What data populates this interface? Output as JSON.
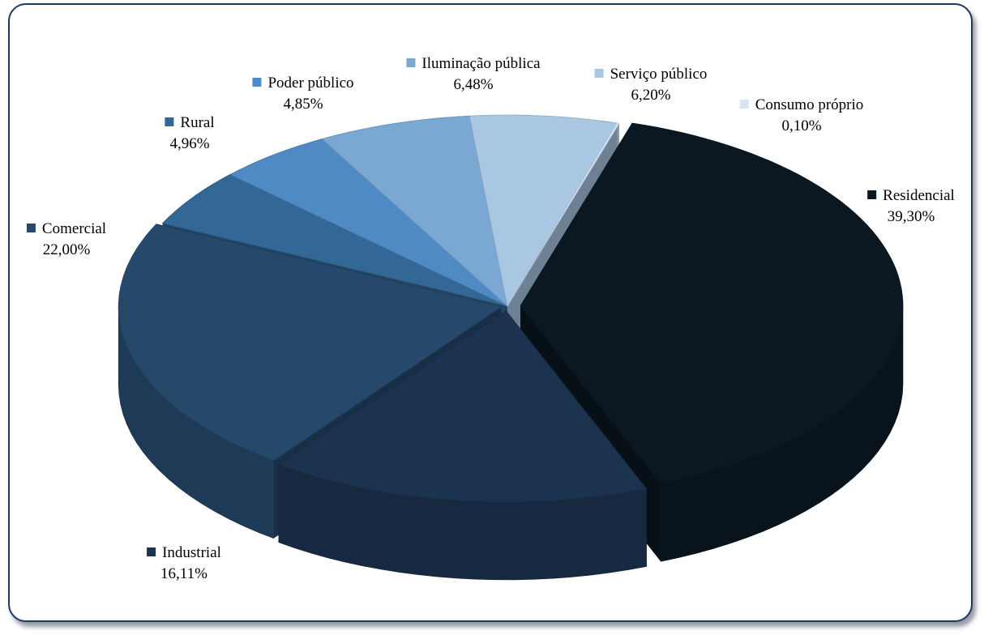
{
  "chart_data": {
    "type": "pie",
    "title": "",
    "slices": [
      {
        "name": "Residencial",
        "value": 39.3,
        "label": "39,30%",
        "color": "#0b1822"
      },
      {
        "name": "Industrial",
        "value": 16.11,
        "label": "16,11%",
        "color": "#1c3350"
      },
      {
        "name": "Comercial",
        "value": 22.0,
        "label": "22,00%",
        "color": "#26496b"
      },
      {
        "name": "Rural",
        "value": 4.96,
        "label": "4,96%",
        "color": "#336896"
      },
      {
        "name": "Poder público",
        "value": 4.85,
        "label": "4,85%",
        "color": "#4f8ac4"
      },
      {
        "name": "Iluminação pública",
        "value": 6.48,
        "label": "6,48%",
        "color": "#7aa8d2"
      },
      {
        "name": "Serviço público",
        "value": 6.2,
        "label": "6,20%",
        "color": "#a9c6e3"
      },
      {
        "name": "Consumo próprio",
        "value": 0.1,
        "label": "0,10%",
        "color": "#d4e6f6"
      }
    ],
    "legend": "labels-beside-slices",
    "style": "3d-exploded"
  }
}
